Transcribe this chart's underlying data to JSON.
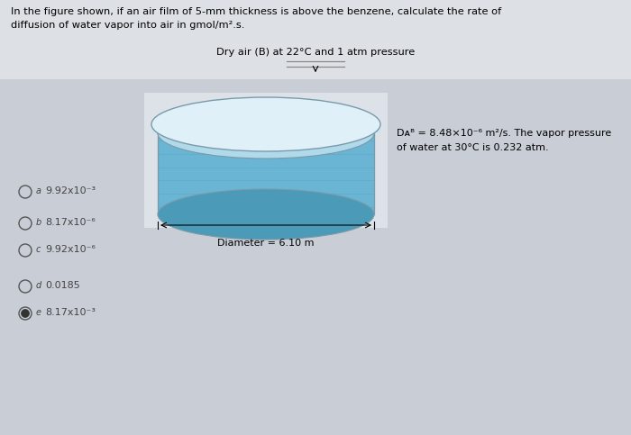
{
  "title_text1": "In the figure shown, if an air film of 5-mm thickness is above the benzene, calculate the rate of",
  "title_text2": "diffusion of water vapor into air in gmol/m².s.",
  "diagram_label_top": "Dry air (B) at 22°C and 1 atm pressure",
  "diagram_label_bottom": "Diameter = 6.10 m",
  "side_text_line1": "Dᴀᴮ = 8.48×10⁻⁶ m²/s. The vapor pressure",
  "side_text_line2": "of water at 30°C is 0.232 atm.",
  "options": [
    {
      "letter": "a",
      "value": "9.92x10⁻³",
      "selected": false
    },
    {
      "letter": "b",
      "value": "8.17x10⁻⁶",
      "selected": false
    },
    {
      "letter": "c",
      "value": "9.92x10⁻⁶",
      "selected": false
    },
    {
      "letter": "d",
      "value": "0.0185",
      "selected": false
    },
    {
      "letter": "e",
      "value": "8.17x10⁻³",
      "selected": true
    }
  ],
  "bg_color": "#c9cdd5",
  "cylinder_body_color": "#6ab4d4",
  "cylinder_dark_color": "#4a9ab8",
  "cylinder_top_color": "#b0daea",
  "cylinder_rim_color": "#dff0f8",
  "cylinder_edge_color": "#7a9aaa",
  "white_bg_color": "#e8ecf0"
}
